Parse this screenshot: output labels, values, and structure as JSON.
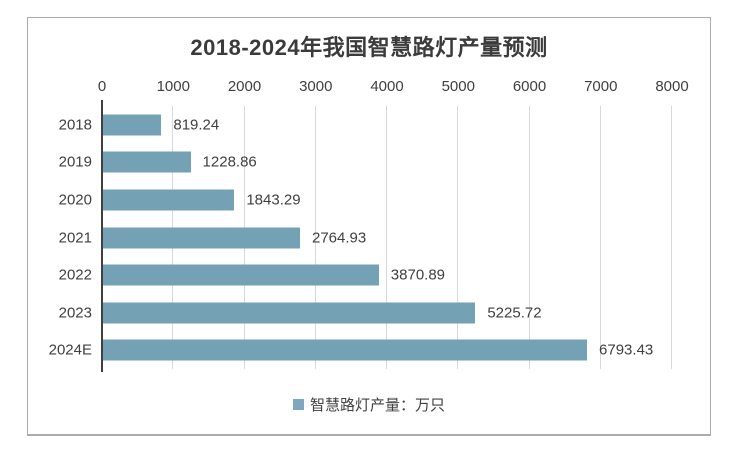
{
  "chart_data": {
    "type": "bar",
    "orientation": "horizontal",
    "title": "2018-2024年我国智慧路灯产量预测",
    "categories": [
      "2018",
      "2019",
      "2020",
      "2021",
      "2022",
      "2023",
      "2024E"
    ],
    "values": [
      819.24,
      1228.86,
      1843.29,
      2764.93,
      3870.89,
      5225.72,
      6793.43
    ],
    "value_labels": [
      "819.24",
      "1228.86",
      "1843.29",
      "2764.93",
      "3870.89",
      "5225.72",
      "6793.43"
    ],
    "legend": "智慧路灯产量：万只",
    "legend_position": "bottom",
    "legend_swatch": "square",
    "x_ticks": [
      0,
      1000,
      2000,
      3000,
      4000,
      5000,
      6000,
      7000,
      8000
    ],
    "xlim": [
      0,
      8000
    ],
    "grid": true,
    "data_labels": "outside-end",
    "colors": {
      "bar": "#74A1B3",
      "legend_swatch": "#7FA8BE",
      "title_text": "#3B3B3B",
      "axis_text": "#404040",
      "gridline": "#D9D9D9",
      "axis_line": "#404040",
      "chart_border": "#ABABAB"
    }
  }
}
